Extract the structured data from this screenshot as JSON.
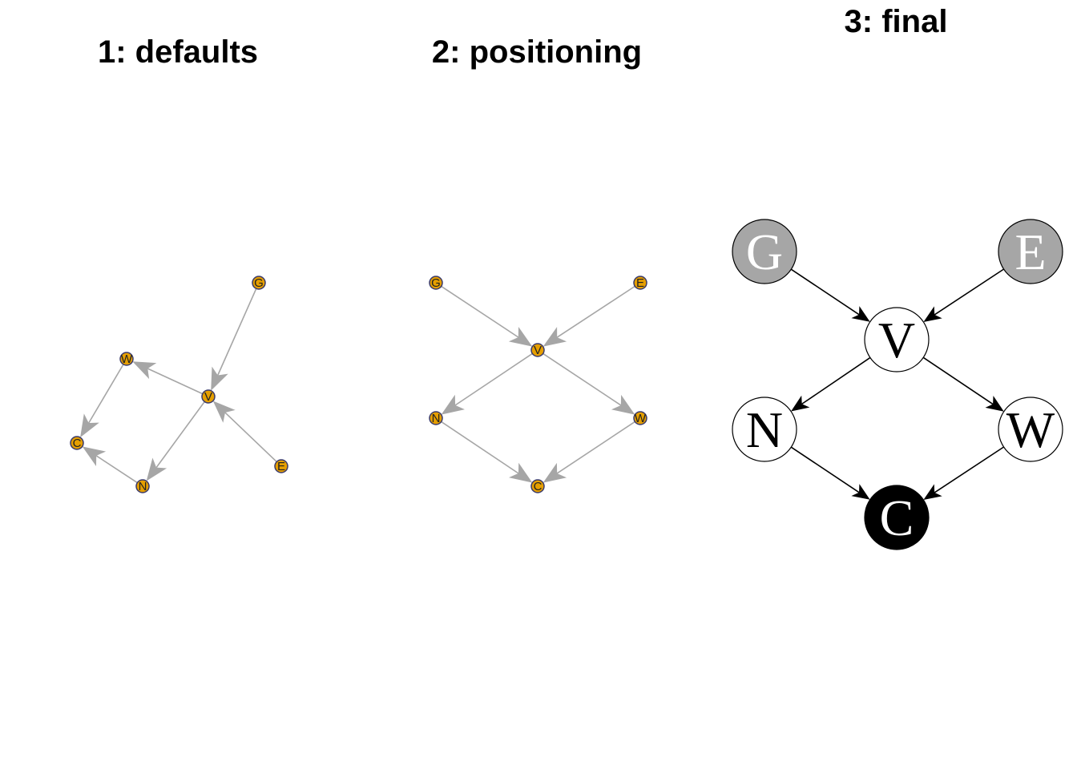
{
  "panels": [
    {
      "id": "defaults",
      "title": "1: defaults",
      "style": {
        "node_fill": "#E69F00",
        "node_stroke": "#3a3a6a",
        "edge_color": "#a6a6a6",
        "label_color": "#222222"
      },
      "nodes": [
        {
          "id": "G",
          "label": "G"
        },
        {
          "id": "E",
          "label": "E"
        },
        {
          "id": "V",
          "label": "V"
        },
        {
          "id": "W",
          "label": "W"
        },
        {
          "id": "N",
          "label": "N"
        },
        {
          "id": "C",
          "label": "C"
        }
      ],
      "edges": [
        {
          "from": "G",
          "to": "V"
        },
        {
          "from": "E",
          "to": "V"
        },
        {
          "from": "V",
          "to": "W"
        },
        {
          "from": "V",
          "to": "N"
        },
        {
          "from": "W",
          "to": "C"
        },
        {
          "from": "N",
          "to": "C"
        }
      ]
    },
    {
      "id": "positioning",
      "title": "2: positioning",
      "style": {
        "node_fill": "#E69F00",
        "node_stroke": "#3a3a6a",
        "edge_color": "#a6a6a6",
        "label_color": "#222222"
      },
      "nodes": [
        {
          "id": "G",
          "label": "G"
        },
        {
          "id": "E",
          "label": "E"
        },
        {
          "id": "V",
          "label": "V"
        },
        {
          "id": "N",
          "label": "N"
        },
        {
          "id": "W",
          "label": "W"
        },
        {
          "id": "C",
          "label": "C"
        }
      ],
      "edges": [
        {
          "from": "G",
          "to": "V"
        },
        {
          "from": "E",
          "to": "V"
        },
        {
          "from": "V",
          "to": "N"
        },
        {
          "from": "V",
          "to": "W"
        },
        {
          "from": "N",
          "to": "C"
        },
        {
          "from": "W",
          "to": "C"
        }
      ]
    },
    {
      "id": "final",
      "title": "3: final",
      "style": {
        "edge_color": "#000000",
        "node_stroke": "#000000"
      },
      "nodes": [
        {
          "id": "G",
          "label": "G",
          "fill": "#a6a6a6",
          "label_color": "#ffffff"
        },
        {
          "id": "E",
          "label": "E",
          "fill": "#a6a6a6",
          "label_color": "#ffffff"
        },
        {
          "id": "V",
          "label": "V",
          "fill": "#ffffff",
          "label_color": "#000000"
        },
        {
          "id": "N",
          "label": "N",
          "fill": "#ffffff",
          "label_color": "#000000"
        },
        {
          "id": "W",
          "label": "W",
          "fill": "#ffffff",
          "label_color": "#000000"
        },
        {
          "id": "C",
          "label": "C",
          "fill": "#000000",
          "label_color": "#ffffff"
        }
      ],
      "edges": [
        {
          "from": "G",
          "to": "V"
        },
        {
          "from": "E",
          "to": "V"
        },
        {
          "from": "V",
          "to": "N"
        },
        {
          "from": "V",
          "to": "W"
        },
        {
          "from": "N",
          "to": "C"
        },
        {
          "from": "W",
          "to": "C"
        }
      ]
    }
  ]
}
